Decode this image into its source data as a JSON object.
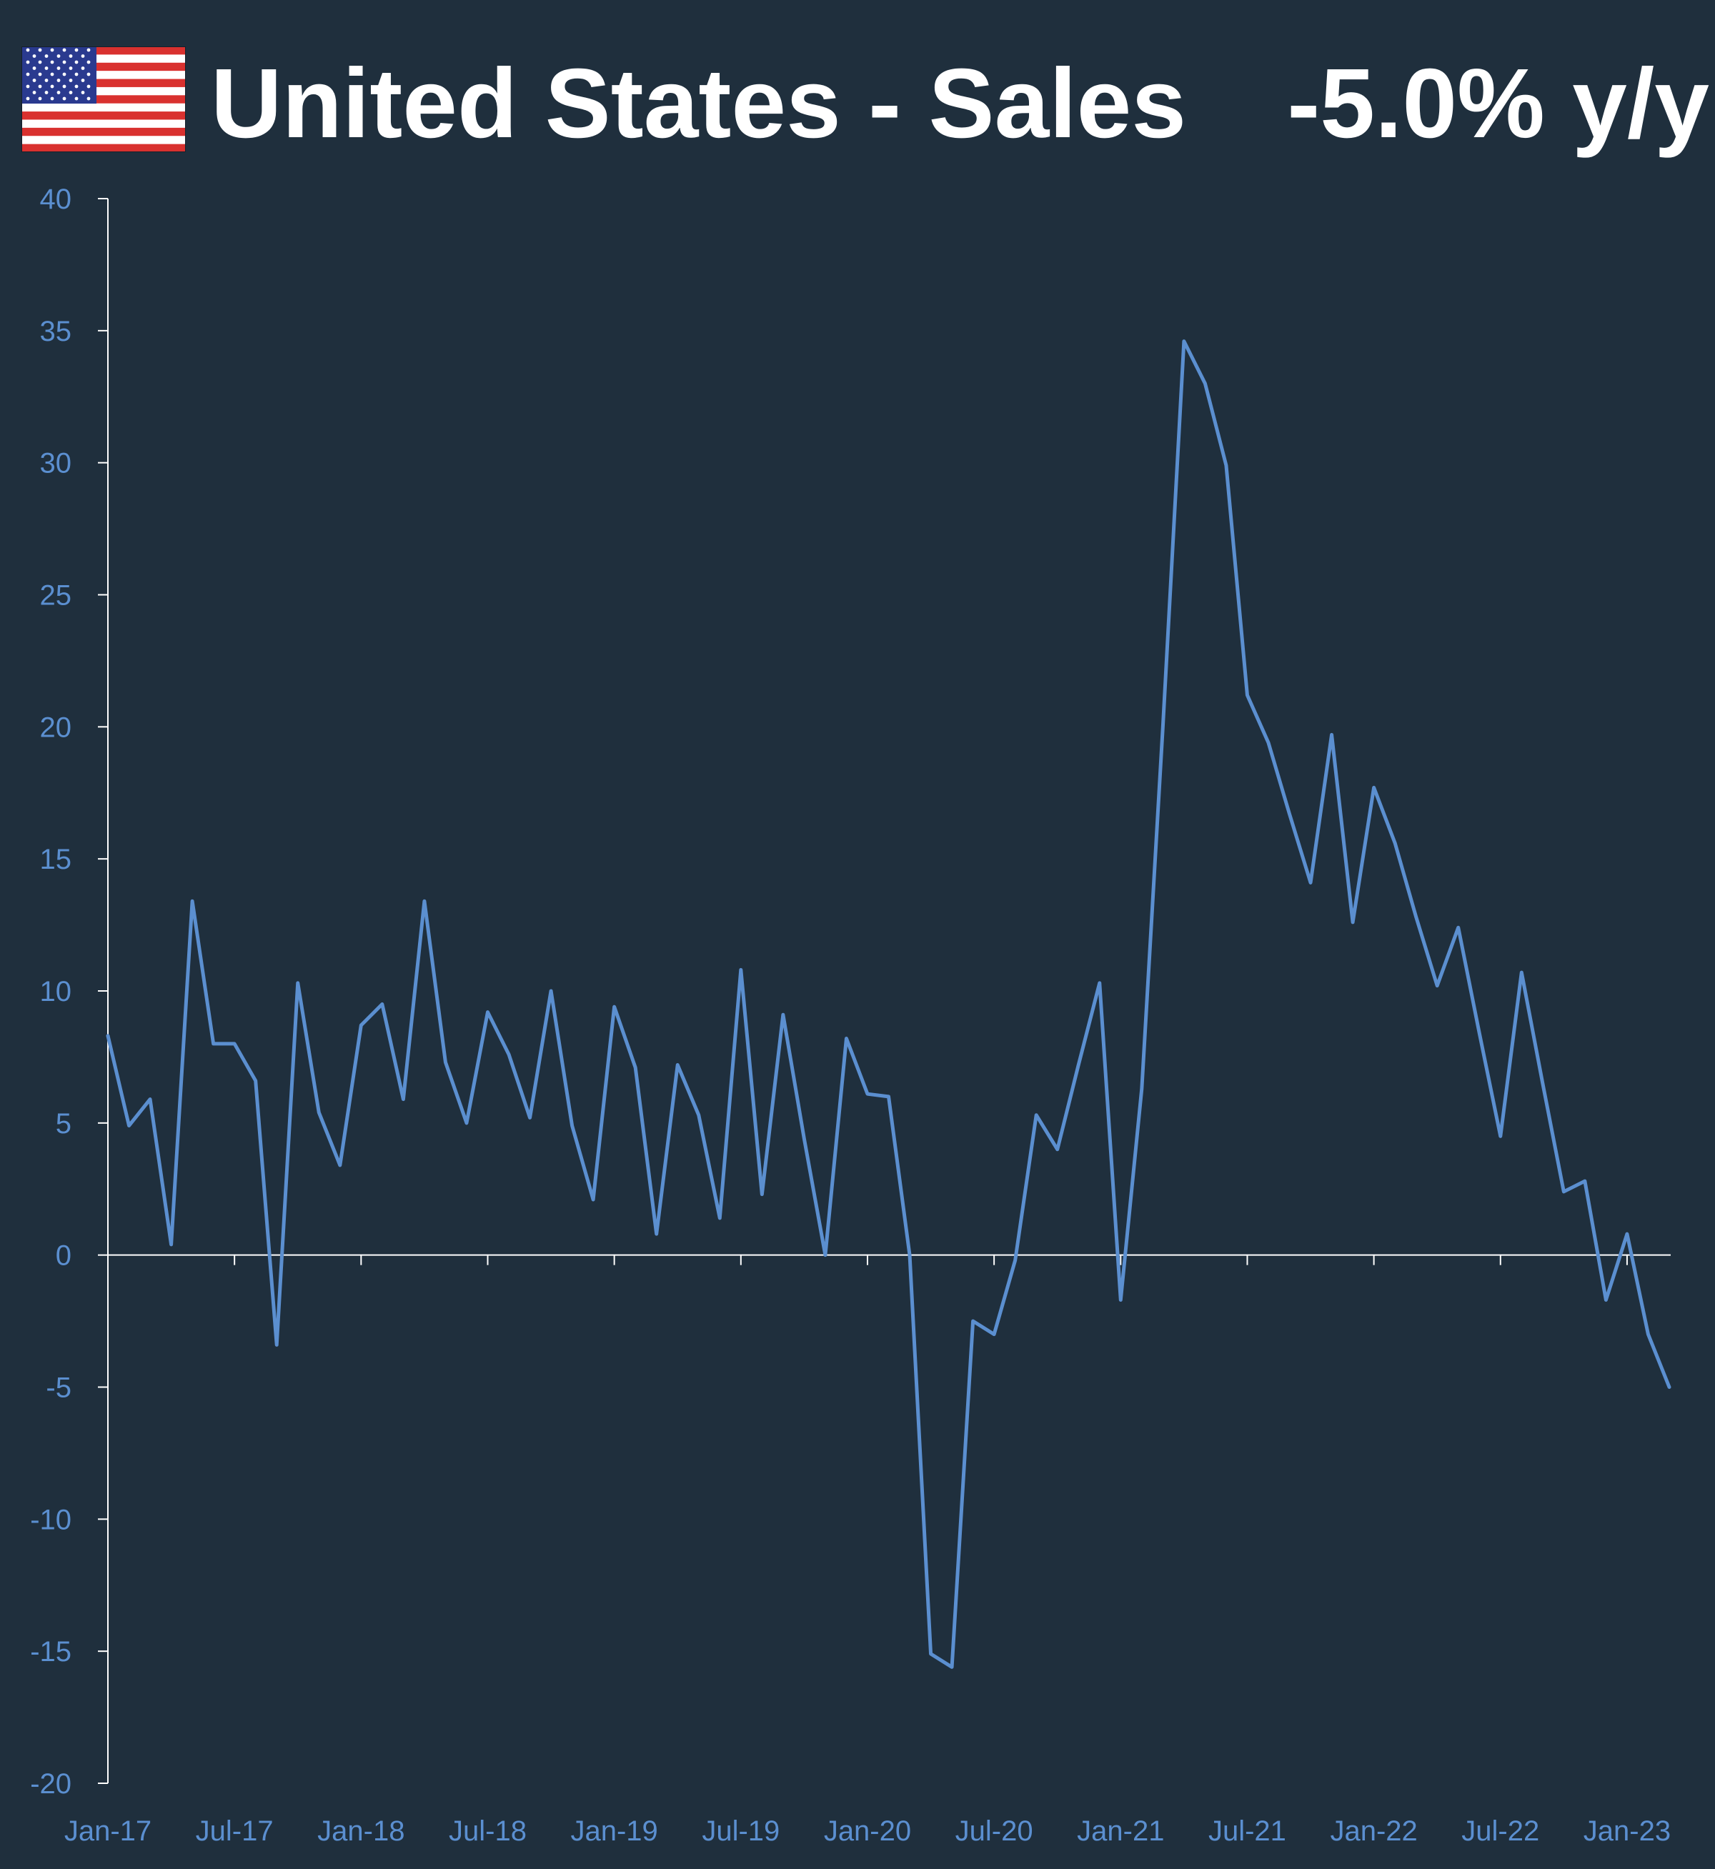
{
  "header": {
    "flag_icon": "us-flag-icon",
    "title": "United States - Sales",
    "headline_value": "-5.0% y/y"
  },
  "colors": {
    "background": "#1f2f3d",
    "line": "#5b8fd0",
    "axis": "#ffffff",
    "tick_text": "#5b8fd0"
  },
  "chart_data": {
    "type": "line",
    "title": "United States - Sales",
    "xlabel": "",
    "ylabel": "",
    "ylim": [
      -20,
      40
    ],
    "yticks": [
      40,
      35,
      30,
      25,
      20,
      15,
      10,
      5,
      0,
      -5,
      -10,
      -15,
      -20
    ],
    "xtick_labels": [
      "Jan-17",
      "Jul-17",
      "Jan-18",
      "Jul-18",
      "Jan-19",
      "Jul-19",
      "Jan-20",
      "Jul-20",
      "Jan-21",
      "Jul-21",
      "Jan-22",
      "Jul-22",
      "Jan-23"
    ],
    "x_start": "Jan-17",
    "x_end": "Apr-23",
    "grid": false,
    "series": [
      {
        "values": [
          8.3,
          4.9,
          5.9,
          0.4,
          13.4,
          8.0,
          8.0,
          6.6,
          -3.4,
          10.3,
          5.4,
          3.4,
          8.7,
          9.5,
          5.9,
          13.4,
          7.3,
          5.0,
          9.2,
          7.6,
          5.2,
          10.0,
          4.9,
          2.1,
          9.4,
          7.1,
          0.8,
          7.2,
          5.3,
          1.4,
          10.8,
          2.3,
          9.1,
          4.4,
          0.0,
          8.2,
          6.1,
          6.0,
          0.0,
          -15.1,
          -15.6,
          -2.5,
          -3.0,
          -0.2,
          5.3,
          4.0,
          7.2,
          10.3,
          -1.7,
          6.3,
          20.0,
          34.6,
          33.0,
          29.9,
          21.2,
          19.4,
          16.7,
          14.1,
          19.7,
          12.6,
          17.7,
          15.6,
          12.8,
          10.2,
          12.4,
          8.4,
          4.5,
          10.7,
          6.5,
          2.4,
          2.8,
          -1.7,
          0.8,
          -3.0,
          -5.0
        ]
      }
    ]
  }
}
